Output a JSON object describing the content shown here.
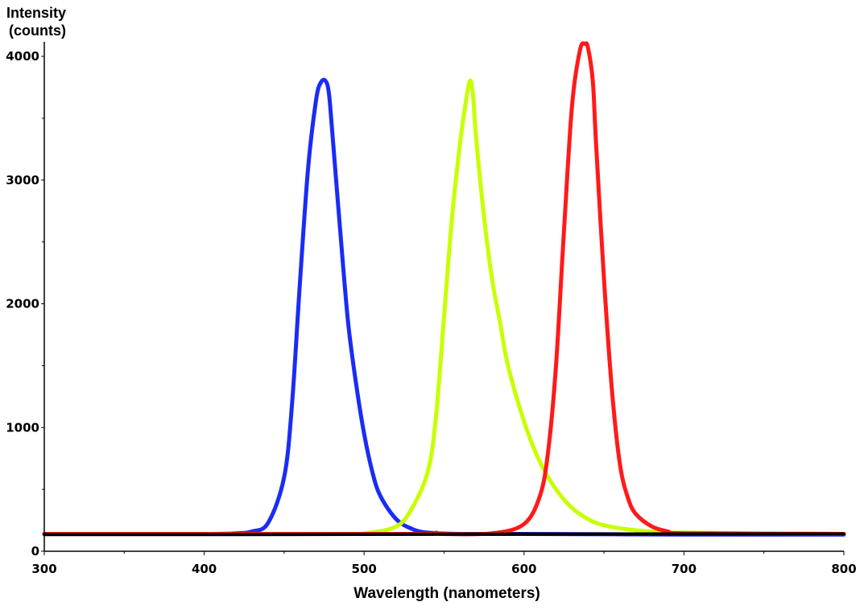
{
  "chart_data": {
    "type": "line",
    "ylabel_lines": [
      "Intensity",
      "(counts)"
    ],
    "xlabel": "Wavelength (nanometers)",
    "xlim": [
      300,
      800
    ],
    "ylim": [
      0,
      4000
    ],
    "x_ticks": [
      "300",
      "400",
      "500",
      "600",
      "700",
      "800"
    ],
    "y_ticks": [
      "0",
      "1000",
      "2000",
      "3000",
      "4000"
    ],
    "grid": false,
    "series": [
      {
        "color": "#1a2cf5",
        "x": [
          300,
          400,
          420,
          430,
          440,
          450,
          455,
          460,
          465,
          470,
          473,
          476,
          478,
          480,
          485,
          490,
          495,
          500,
          505,
          510,
          520,
          530,
          540,
          560,
          600,
          700,
          800
        ],
        "values": [
          140,
          140,
          145,
          160,
          230,
          600,
          1200,
          2200,
          3100,
          3650,
          3790,
          3800,
          3700,
          3400,
          2600,
          1850,
          1350,
          950,
          650,
          450,
          260,
          180,
          150,
          140,
          140,
          135,
          135
        ]
      },
      {
        "color": "#c8ff00",
        "x": [
          300,
          480,
          500,
          520,
          530,
          540,
          545,
          550,
          555,
          560,
          563,
          566,
          568,
          570,
          575,
          580,
          585,
          590,
          600,
          610,
          620,
          630,
          640,
          650,
          670,
          700,
          800
        ],
        "values": [
          140,
          140,
          145,
          200,
          350,
          650,
          1100,
          1900,
          2700,
          3300,
          3580,
          3800,
          3700,
          3350,
          2700,
          2200,
          1850,
          1500,
          1050,
          720,
          500,
          350,
          260,
          210,
          170,
          150,
          140
        ]
      },
      {
        "color": "#ff1a1a",
        "x": [
          300,
          480,
          540,
          545,
          550,
          580,
          600,
          610,
          615,
          620,
          625,
          630,
          635,
          638,
          640,
          643,
          645,
          650,
          655,
          660,
          665,
          670,
          680,
          690,
          700,
          800
        ],
        "values": [
          140,
          140,
          140,
          150,
          140,
          145,
          220,
          450,
          800,
          1500,
          2600,
          3600,
          4050,
          4100,
          4070,
          3800,
          3300,
          2200,
          1300,
          700,
          430,
          300,
          200,
          160,
          145,
          140
        ]
      },
      {
        "color": "#000000",
        "x": [
          300,
          420,
          680,
          800
        ],
        "values": [
          135,
          135,
          140,
          140
        ]
      }
    ]
  }
}
